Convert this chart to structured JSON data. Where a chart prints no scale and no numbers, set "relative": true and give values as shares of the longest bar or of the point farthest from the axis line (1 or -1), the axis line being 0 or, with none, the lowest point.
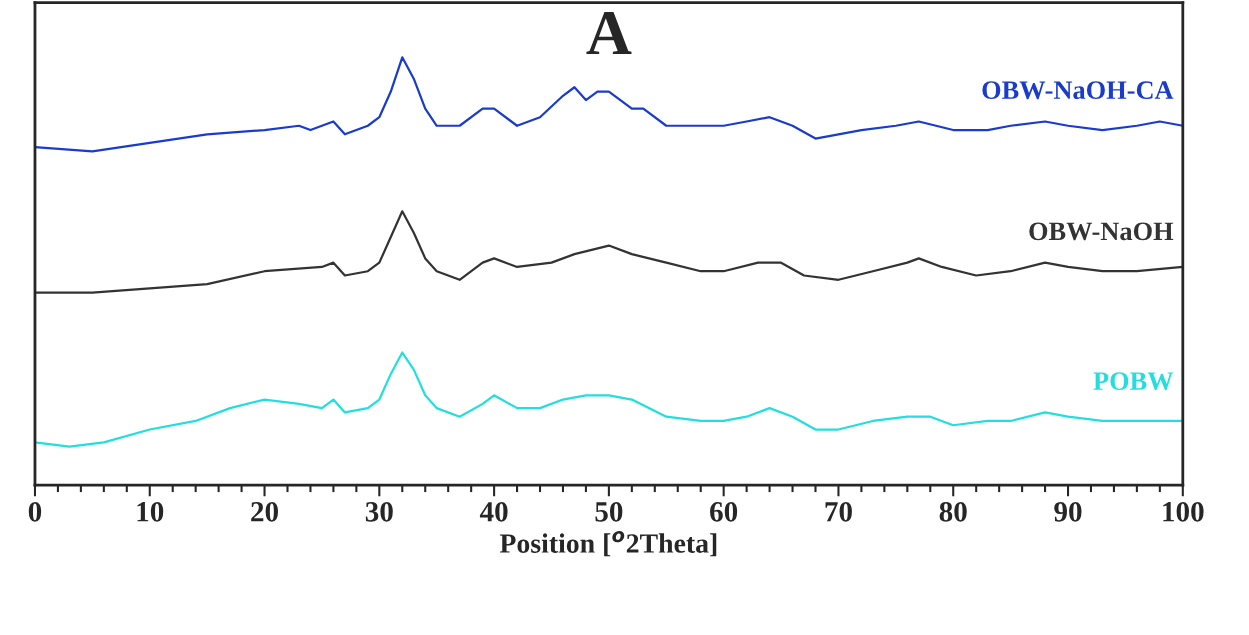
{
  "chart_data": {
    "type": "line",
    "title": "A",
    "xlabel": "Position [$^{o}$2Theta]",
    "relative": true,
    "grid": false,
    "marker": "none",
    "line_style": "solid",
    "xlim": [
      0,
      100
    ],
    "xticks": [
      0,
      {
        "value": 2,
        "label": null
      },
      {
        "value": 4,
        "label": null
      },
      {
        "value": 6,
        "label": null
      },
      {
        "value": 8,
        "label": null
      },
      10,
      {
        "value": 12,
        "label": null
      },
      {
        "value": 14,
        "label": null
      },
      {
        "value": 16,
        "label": null
      },
      {
        "value": 18,
        "label": null
      },
      20,
      {
        "value": 22,
        "label": null
      },
      {
        "value": 24,
        "label": null
      },
      {
        "value": 26,
        "label": null
      },
      {
        "value": 28,
        "label": null
      },
      30,
      {
        "value": 32,
        "label": null
      },
      {
        "value": 34,
        "label": null
      },
      {
        "value": 36,
        "label": null
      },
      {
        "value": 38,
        "label": null
      },
      40,
      {
        "value": 42,
        "label": null
      },
      {
        "value": 44,
        "label": null
      },
      {
        "value": 46,
        "label": null
      },
      {
        "value": 48,
        "label": null
      },
      50,
      {
        "value": 52,
        "label": null
      },
      {
        "value": 54,
        "label": null
      },
      {
        "value": 56,
        "label": null
      },
      {
        "value": 58,
        "label": null
      },
      60,
      {
        "value": 62,
        "label": null
      },
      {
        "value": 64,
        "label": null
      },
      {
        "value": 66,
        "label": null
      },
      {
        "value": 68,
        "label": null
      },
      70,
      {
        "value": 72,
        "label": null
      },
      {
        "value": 74,
        "label": null
      },
      {
        "value": 76,
        "label": null
      },
      {
        "value": 78,
        "label": null
      },
      80,
      {
        "value": 82,
        "label": null
      },
      {
        "value": 84,
        "label": null
      },
      {
        "value": 86,
        "label": null
      },
      {
        "value": 88,
        "label": null
      },
      90,
      {
        "value": 92,
        "label": null
      },
      {
        "value": 94,
        "label": null
      },
      {
        "value": 96,
        "label": null
      },
      {
        "value": 98,
        "label": null
      },
      100
    ],
    "series": [
      {
        "name": "OBW-NaOH-CA",
        "color": "#1a3ccc",
        "x": [
          0,
          5,
          10,
          15,
          20,
          23,
          24,
          26,
          27,
          29,
          30,
          31,
          32,
          33,
          34,
          35,
          37,
          39,
          40,
          42,
          44,
          46,
          47,
          48,
          49,
          50,
          52,
          53,
          55,
          58,
          60,
          62,
          64,
          66,
          68,
          70,
          72,
          75,
          77,
          80,
          83,
          85,
          88,
          90,
          93,
          96,
          98,
          100
        ],
        "values": [
          0.79,
          0.78,
          0.8,
          0.82,
          0.83,
          0.84,
          0.83,
          0.85,
          0.82,
          0.84,
          0.86,
          0.92,
          1.0,
          0.95,
          0.88,
          0.84,
          0.84,
          0.88,
          0.88,
          0.84,
          0.86,
          0.91,
          0.93,
          0.9,
          0.92,
          0.92,
          0.88,
          0.88,
          0.84,
          0.84,
          0.84,
          0.85,
          0.86,
          0.84,
          0.81,
          0.82,
          0.83,
          0.84,
          0.85,
          0.83,
          0.83,
          0.84,
          0.85,
          0.84,
          0.83,
          0.84,
          0.85,
          0.84
        ]
      },
      {
        "name": "OBW-NaOH",
        "color": "#333333",
        "x": [
          0,
          5,
          10,
          15,
          20,
          25,
          26,
          27,
          29,
          30,
          31,
          32,
          33,
          34,
          35,
          37,
          39,
          40,
          42,
          45,
          47,
          50,
          52,
          55,
          58,
          60,
          63,
          65,
          67,
          70,
          73,
          76,
          77,
          79,
          82,
          85,
          88,
          90,
          93,
          96,
          100
        ],
        "values": [
          0.45,
          0.45,
          0.46,
          0.47,
          0.5,
          0.51,
          0.52,
          0.49,
          0.5,
          0.52,
          0.58,
          0.64,
          0.59,
          0.53,
          0.5,
          0.48,
          0.52,
          0.53,
          0.51,
          0.52,
          0.54,
          0.56,
          0.54,
          0.52,
          0.5,
          0.5,
          0.52,
          0.52,
          0.49,
          0.48,
          0.5,
          0.52,
          0.53,
          0.51,
          0.49,
          0.5,
          0.52,
          0.51,
          0.5,
          0.5,
          0.51
        ]
      },
      {
        "name": "POBW",
        "color": "#22dede",
        "x": [
          0,
          3,
          6,
          10,
          14,
          17,
          20,
          23,
          25,
          26,
          27,
          29,
          30,
          31,
          32,
          33,
          34,
          35,
          37,
          39,
          40,
          42,
          44,
          46,
          48,
          50,
          52,
          55,
          58,
          60,
          62,
          64,
          66,
          68,
          70,
          73,
          76,
          78,
          80,
          83,
          85,
          88,
          90,
          93,
          96,
          100
        ],
        "values": [
          0.1,
          0.09,
          0.1,
          0.13,
          0.15,
          0.18,
          0.2,
          0.19,
          0.18,
          0.2,
          0.17,
          0.18,
          0.2,
          0.26,
          0.31,
          0.27,
          0.21,
          0.18,
          0.16,
          0.19,
          0.21,
          0.18,
          0.18,
          0.2,
          0.21,
          0.21,
          0.2,
          0.16,
          0.15,
          0.15,
          0.16,
          0.18,
          0.16,
          0.13,
          0.13,
          0.15,
          0.16,
          0.16,
          0.14,
          0.15,
          0.15,
          0.17,
          0.16,
          0.15,
          0.15,
          0.15
        ]
      }
    ]
  }
}
